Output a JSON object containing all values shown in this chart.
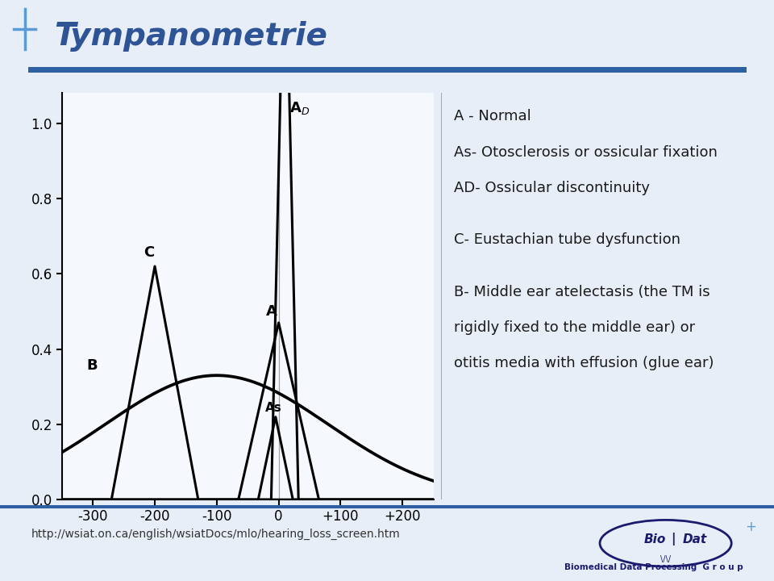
{
  "title": "Tympanometrie",
  "title_color": "#2F5496",
  "bg_color": "#E8EEF7",
  "header_bar_color": "#2E5FA3",
  "legend_lines": [
    "A - Normal",
    "As- Otosclerosis or ossicular fixation",
    "AD- Ossicular discontinuity",
    "",
    "C- Eustachian tube dysfunction",
    "",
    "B- Middle ear atelectasis (the TM is",
    "rigidly fixed to the middle ear) or",
    "otitis media with effusion (glue ear)"
  ],
  "footer_text": "http://wsiat.on.ca/english/wsiatDocs/mlo/hearing_loss_screen.htm",
  "xmin": -350,
  "xmax": 250,
  "ymin": 0.0,
  "ymax": 1.08,
  "xticks": [
    -300,
    -200,
    -100,
    0,
    100,
    200
  ],
  "xtick_labels": [
    "-300",
    "-200",
    "-100",
    "0",
    "+100",
    "+200"
  ],
  "yticks": [
    0.0,
    0.2,
    0.4,
    0.6,
    0.8,
    1.0
  ]
}
